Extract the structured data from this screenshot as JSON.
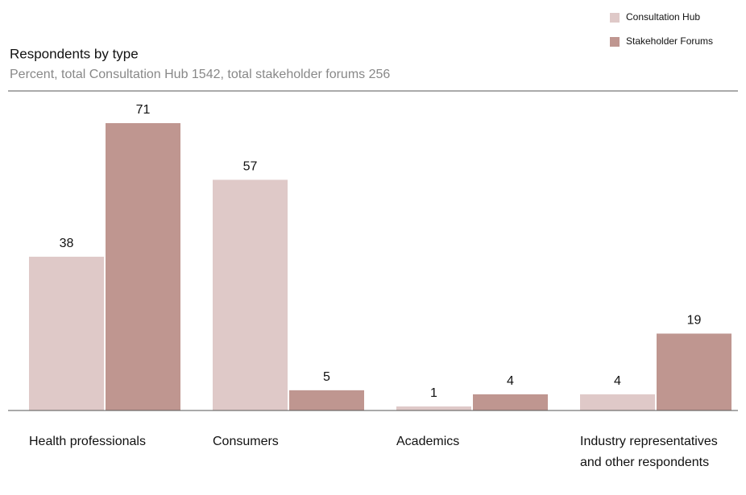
{
  "chart_data": {
    "type": "bar",
    "title": "Respondents by type",
    "subtitle": "Percent, total Consultation Hub 1542, total stakeholder forums 256",
    "categories": [
      "Health professionals",
      "Consumers",
      "Academics",
      "Industry representatives and other respondents"
    ],
    "series": [
      {
        "name": "Consultation Hub",
        "color": "#dfc9c8",
        "values": [
          38,
          57,
          1,
          4
        ]
      },
      {
        "name": "Stakeholder Forums",
        "color": "#bf9690",
        "values": [
          71,
          5,
          4,
          19
        ]
      }
    ],
    "legend": "top-right"
  }
}
